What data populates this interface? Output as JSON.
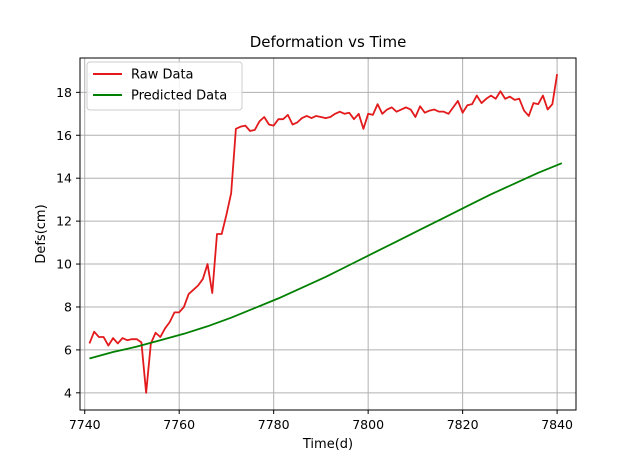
{
  "chart_data": {
    "type": "line",
    "title": "Deformation vs Time",
    "xlabel": "Time(d)",
    "ylabel": "Defs(cm)",
    "xlim": [
      7739,
      7844
    ],
    "ylim": [
      3.2,
      19.6
    ],
    "xticks": [
      7740,
      7760,
      7780,
      7800,
      7820,
      7840
    ],
    "yticks": [
      4,
      6,
      8,
      10,
      12,
      14,
      16,
      18
    ],
    "grid": true,
    "legend_position": "top-left",
    "series": [
      {
        "name": "Raw Data",
        "color": "#e31a1c",
        "x": [
          7741,
          7742,
          7743,
          7744,
          7745,
          7746,
          7747,
          7748,
          7749,
          7750,
          7751,
          7752,
          7753,
          7754,
          7755,
          7756,
          7757,
          7758,
          7759,
          7760,
          7761,
          7762,
          7763,
          7764,
          7765,
          7766,
          7767,
          7768,
          7769,
          7770,
          7771,
          7772,
          7773,
          7774,
          7775,
          7776,
          7777,
          7778,
          7779,
          7780,
          7781,
          7782,
          7783,
          7784,
          7785,
          7786,
          7787,
          7788,
          7789,
          7790,
          7791,
          7792,
          7793,
          7794,
          7795,
          7796,
          7797,
          7798,
          7799,
          7800,
          7801,
          7802,
          7803,
          7804,
          7805,
          7806,
          7807,
          7808,
          7809,
          7810,
          7811,
          7812,
          7813,
          7814,
          7815,
          7816,
          7817,
          7818,
          7819,
          7820,
          7821,
          7822,
          7823,
          7824,
          7825,
          7826,
          7827,
          7828,
          7829,
          7830,
          7831,
          7832,
          7833,
          7834,
          7835,
          7836,
          7837,
          7838,
          7839,
          7840
        ],
        "y": [
          6.3,
          6.85,
          6.6,
          6.6,
          6.2,
          6.55,
          6.3,
          6.55,
          6.45,
          6.5,
          6.5,
          6.35,
          4.0,
          6.3,
          6.8,
          6.6,
          7.0,
          7.3,
          7.75,
          7.75,
          8.0,
          8.6,
          8.8,
          9.0,
          9.3,
          10.0,
          8.65,
          11.4,
          11.4,
          12.3,
          13.3,
          16.3,
          16.4,
          16.45,
          16.2,
          16.25,
          16.65,
          16.85,
          16.5,
          16.45,
          16.75,
          16.75,
          16.95,
          16.5,
          16.6,
          16.8,
          16.9,
          16.8,
          16.9,
          16.85,
          16.8,
          16.85,
          17.0,
          17.1,
          17.0,
          17.05,
          16.75,
          17.0,
          16.3,
          17.0,
          16.95,
          17.45,
          17.0,
          17.2,
          17.3,
          17.1,
          17.2,
          17.3,
          17.2,
          16.85,
          17.35,
          17.05,
          17.15,
          17.2,
          17.1,
          17.1,
          17.0,
          17.3,
          17.6,
          17.05,
          17.4,
          17.45,
          17.85,
          17.5,
          17.7,
          17.85,
          17.7,
          18.05,
          17.7,
          17.8,
          17.65,
          17.7,
          17.15,
          16.9,
          17.5,
          17.45,
          17.85,
          17.2,
          17.45,
          18.85
        ]
      },
      {
        "name": "Predicted Data",
        "color": "#008000",
        "x": [
          7741,
          7746,
          7751,
          7756,
          7761,
          7766,
          7771,
          7776,
          7781,
          7786,
          7791,
          7796,
          7801,
          7806,
          7811,
          7816,
          7821,
          7826,
          7831,
          7836,
          7841
        ],
        "y": [
          5.6,
          5.9,
          6.15,
          6.45,
          6.75,
          7.1,
          7.5,
          7.95,
          8.4,
          8.9,
          9.4,
          9.95,
          10.5,
          11.05,
          11.6,
          12.15,
          12.7,
          13.25,
          13.75,
          14.25,
          14.7
        ]
      }
    ]
  }
}
